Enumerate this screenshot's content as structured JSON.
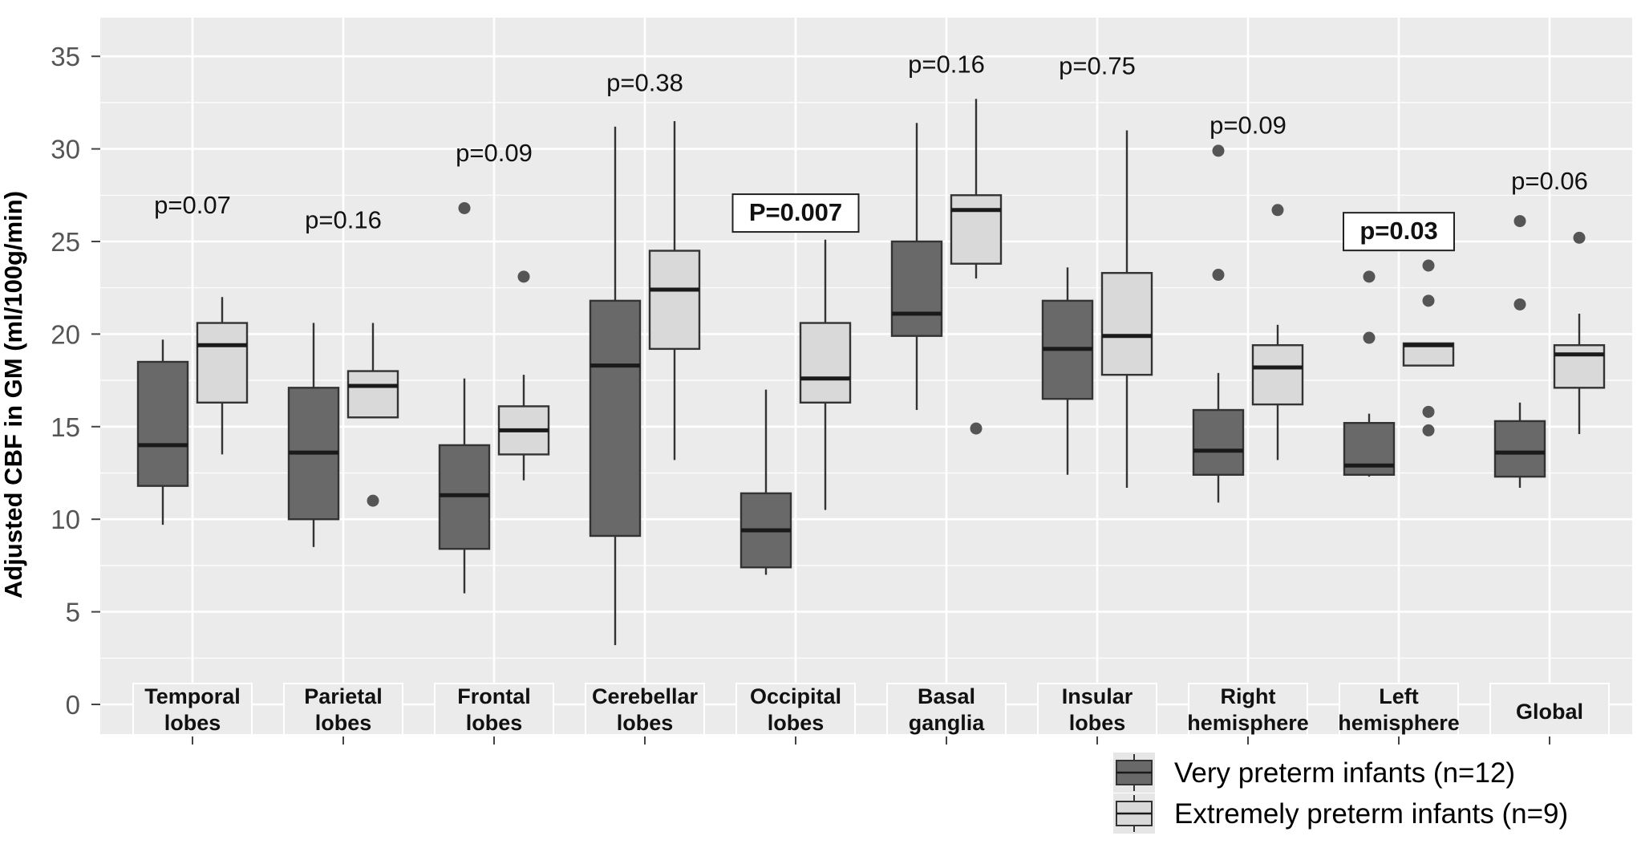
{
  "chart_data": {
    "type": "box",
    "ylabel": "Adjusted CBF in GM (ml/100g/min)",
    "ylim": [
      0,
      35
    ],
    "yticks": [
      0,
      5,
      10,
      15,
      20,
      25,
      30,
      35
    ],
    "grid": true,
    "legend_position": "bottom-right",
    "colors": {
      "very_preterm": "#696969",
      "extremely_preterm": "#d9d9d9",
      "panel": "#ebebeb",
      "gridline": "#ffffff",
      "outline": "#333333"
    },
    "legend": [
      {
        "key": "very_preterm",
        "label": "Very preterm infants (n=12)"
      },
      {
        "key": "extremely_preterm",
        "label": "Extremely preterm infants (n=9)"
      }
    ],
    "regions": [
      {
        "label": [
          "Temporal",
          "lobes"
        ],
        "p": "p=0.07",
        "p_y": 27,
        "highlight": false,
        "very_preterm": {
          "whisker_low": 9.7,
          "q1": 11.8,
          "median": 14.0,
          "q3": 18.5,
          "whisker_high": 19.7,
          "outliers": []
        },
        "extremely_preterm": {
          "whisker_low": 13.5,
          "q1": 16.3,
          "median": 19.4,
          "q3": 20.6,
          "whisker_high": 22.0,
          "outliers": []
        }
      },
      {
        "label": [
          "Parietal",
          "lobes"
        ],
        "p": "p=0.16",
        "p_y": 26.2,
        "highlight": false,
        "very_preterm": {
          "whisker_low": 8.5,
          "q1": 10.0,
          "median": 13.6,
          "q3": 17.1,
          "whisker_high": 20.6,
          "outliers": []
        },
        "extremely_preterm": {
          "whisker_low": 15.5,
          "q1": 15.5,
          "median": 17.2,
          "q3": 18.0,
          "whisker_high": 20.6,
          "outliers": [
            11.0
          ]
        }
      },
      {
        "label": [
          "Frontal",
          "lobes"
        ],
        "p": "p=0.09",
        "p_y": 29.8,
        "highlight": false,
        "very_preterm": {
          "whisker_low": 6.0,
          "q1": 8.4,
          "median": 11.3,
          "q3": 14.0,
          "whisker_high": 17.6,
          "outliers": [
            26.8
          ]
        },
        "extremely_preterm": {
          "whisker_low": 12.1,
          "q1": 13.5,
          "median": 14.8,
          "q3": 16.1,
          "whisker_high": 17.8,
          "outliers": [
            23.1
          ]
        }
      },
      {
        "label": [
          "Cerebellar",
          "lobes"
        ],
        "p": "p=0.38",
        "p_y": 33.6,
        "highlight": false,
        "very_preterm": {
          "whisker_low": 3.2,
          "q1": 9.1,
          "median": 18.3,
          "q3": 21.8,
          "whisker_high": 31.2,
          "outliers": []
        },
        "extremely_preterm": {
          "whisker_low": 13.2,
          "q1": 19.2,
          "median": 22.4,
          "q3": 24.5,
          "whisker_high": 31.5,
          "outliers": []
        }
      },
      {
        "label": [
          "Occipital",
          "lobes"
        ],
        "p": "P=0.007",
        "p_y": 26.6,
        "highlight": true,
        "very_preterm": {
          "whisker_low": 7.0,
          "q1": 7.4,
          "median": 9.4,
          "q3": 11.4,
          "whisker_high": 17.0,
          "outliers": []
        },
        "extremely_preterm": {
          "whisker_low": 10.5,
          "q1": 16.3,
          "median": 17.6,
          "q3": 20.6,
          "whisker_high": 25.1,
          "outliers": []
        }
      },
      {
        "label": [
          "Basal",
          "ganglia"
        ],
        "p": "p=0.16",
        "p_y": 34.6,
        "highlight": false,
        "very_preterm": {
          "whisker_low": 15.9,
          "q1": 19.9,
          "median": 21.1,
          "q3": 25.0,
          "whisker_high": 31.4,
          "outliers": []
        },
        "extremely_preterm": {
          "whisker_low": 23.0,
          "q1": 23.8,
          "median": 26.7,
          "q3": 27.5,
          "whisker_high": 32.7,
          "outliers": [
            14.9
          ]
        }
      },
      {
        "label": [
          "Insular",
          "lobes"
        ],
        "p": "p=0.75",
        "p_y": 34.5,
        "highlight": false,
        "very_preterm": {
          "whisker_low": 12.4,
          "q1": 16.5,
          "median": 19.2,
          "q3": 21.8,
          "whisker_high": 23.6,
          "outliers": []
        },
        "extremely_preterm": {
          "whisker_low": 11.7,
          "q1": 17.8,
          "median": 19.9,
          "q3": 23.3,
          "whisker_high": 31.0,
          "outliers": []
        }
      },
      {
        "label": [
          "Right",
          "hemisphere"
        ],
        "p": "p=0.09",
        "p_y": 31.3,
        "highlight": false,
        "very_preterm": {
          "whisker_low": 10.9,
          "q1": 12.4,
          "median": 13.7,
          "q3": 15.9,
          "whisker_high": 17.9,
          "outliers": [
            23.2,
            29.9
          ]
        },
        "extremely_preterm": {
          "whisker_low": 13.2,
          "q1": 16.2,
          "median": 18.2,
          "q3": 19.4,
          "whisker_high": 20.5,
          "outliers": [
            26.7
          ]
        }
      },
      {
        "label": [
          "Left",
          "hemisphere"
        ],
        "p": "p=0.03",
        "p_y": 25.6,
        "highlight": true,
        "very_preterm": {
          "whisker_low": 12.3,
          "q1": 12.4,
          "median": 12.9,
          "q3": 15.2,
          "whisker_high": 15.7,
          "outliers": [
            19.8,
            23.1
          ]
        },
        "extremely_preterm": {
          "whisker_low": 18.3,
          "q1": 18.3,
          "median": 19.4,
          "q3": 19.5,
          "whisker_high": 19.5,
          "outliers": [
            14.8,
            15.8,
            21.8,
            23.7
          ]
        }
      },
      {
        "label": [
          "Global"
        ],
        "p": "p=0.06",
        "p_y": 28.3,
        "highlight": false,
        "very_preterm": {
          "whisker_low": 11.7,
          "q1": 12.3,
          "median": 13.6,
          "q3": 15.3,
          "whisker_high": 16.3,
          "outliers": [
            21.6,
            26.1
          ]
        },
        "extremely_preterm": {
          "whisker_low": 14.6,
          "q1": 17.1,
          "median": 18.9,
          "q3": 19.4,
          "whisker_high": 21.1,
          "outliers": [
            25.2
          ]
        }
      }
    ]
  }
}
